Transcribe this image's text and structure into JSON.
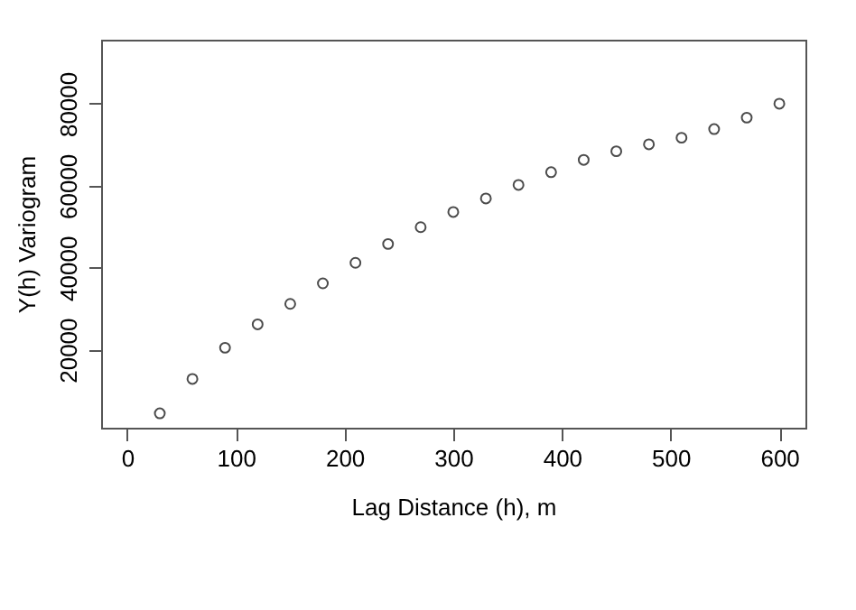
{
  "chart_data": {
    "type": "scatter",
    "xlabel": "Lag Distance (h), m",
    "ylabel": "Y(h) Variogram",
    "x": [
      30,
      60,
      90,
      120,
      150,
      180,
      210,
      240,
      270,
      300,
      330,
      360,
      390,
      420,
      450,
      480,
      510,
      540,
      570,
      600
    ],
    "series": [
      {
        "color": "#000000",
        "values": [
          4500,
          12900,
          20500,
          26200,
          31200,
          36200,
          41200,
          45800,
          49900,
          53600,
          56900,
          60200,
          63300,
          66300,
          68400,
          70100,
          71700,
          73800,
          76600,
          80000
        ]
      }
    ],
    "xlim": [
      -24,
      624
    ],
    "ylim": [
      1000,
      95600
    ],
    "xticks": [
      0,
      100,
      200,
      300,
      400,
      500,
      600
    ],
    "yticks": [
      20000,
      40000,
      60000,
      80000
    ],
    "marker": "circle",
    "grid": false
  }
}
